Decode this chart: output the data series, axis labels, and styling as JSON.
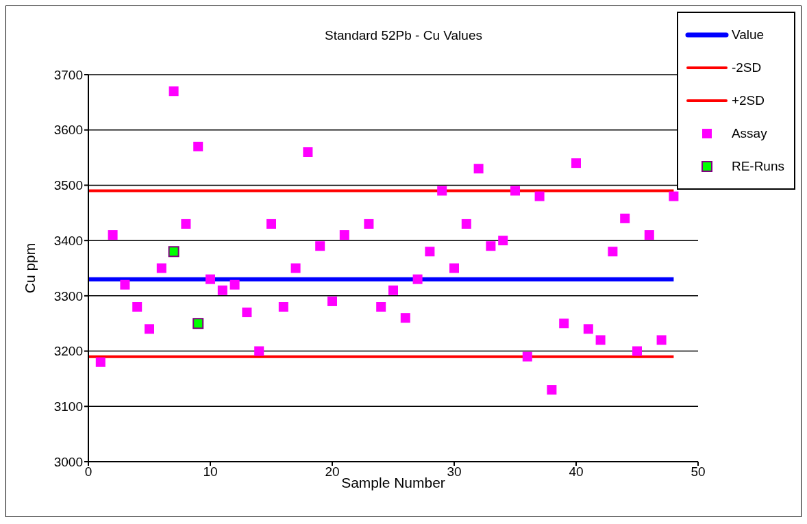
{
  "chart_data": {
    "type": "scatter",
    "title": "Standard 52Pb - Cu Values",
    "xlabel": "Sample Number",
    "ylabel": "Cu ppm",
    "xlim": [
      0,
      50
    ],
    "xticks": [
      0,
      10,
      20,
      30,
      40,
      50
    ],
    "ylim": [
      3000,
      3700
    ],
    "yticks": [
      3000,
      3100,
      3200,
      3300,
      3400,
      3500,
      3600,
      3700
    ],
    "grid": "y",
    "legend": "top right",
    "series": [
      {
        "name": "Value",
        "type": "line",
        "color": "#0000ff",
        "x": [
          0,
          48
        ],
        "values": [
          3330,
          3330
        ]
      },
      {
        "name": "-2SD",
        "type": "line",
        "color": "#ff0000",
        "x": [
          0,
          48
        ],
        "values": [
          3190,
          3190
        ]
      },
      {
        "name": "+2SD",
        "type": "line",
        "color": "#ff0000",
        "x": [
          0,
          48
        ],
        "values": [
          3490,
          3490
        ]
      },
      {
        "name": "Assay",
        "marker": "square",
        "color": "#ff00ff",
        "x": [
          1,
          2,
          3,
          4,
          5,
          6,
          7,
          8,
          9,
          10,
          11,
          12,
          13,
          14,
          15,
          16,
          17,
          18,
          19,
          20,
          21,
          22,
          23,
          24,
          25,
          26,
          27,
          28,
          29,
          30,
          31,
          32,
          33,
          34,
          35,
          36,
          37,
          38,
          39,
          40,
          41,
          42,
          43,
          44,
          45,
          46,
          47,
          48
        ],
        "values": [
          3180,
          3410,
          3320,
          3280,
          3240,
          3350,
          3670,
          3430,
          3570,
          3330,
          3310,
          3320,
          3270,
          3200,
          3430,
          3280,
          3350,
          3560,
          3390,
          3290,
          3410,
          null,
          3430,
          3280,
          3310,
          3260,
          3330,
          3380,
          3490,
          3350,
          3430,
          3530,
          3390,
          3400,
          3490,
          3190,
          3480,
          3130,
          3250,
          3540,
          3240,
          3220,
          3380,
          3440,
          3200,
          3410,
          3220,
          3480
        ]
      },
      {
        "name": "RE-Runs",
        "marker": "square",
        "color": "#00ff00",
        "x": [
          7,
          9
        ],
        "values": [
          3380,
          3250
        ]
      }
    ]
  }
}
